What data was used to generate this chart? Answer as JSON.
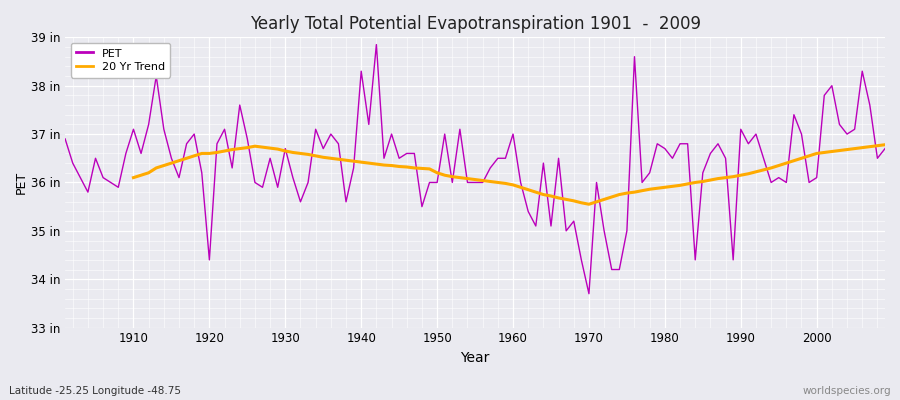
{
  "title": "Yearly Total Potential Evapotranspiration 1901  -  2009",
  "xlabel": "Year",
  "ylabel": "PET",
  "subtitle_left": "Latitude -25.25 Longitude -48.75",
  "subtitle_right": "worldspecies.org",
  "ylim": [
    33,
    39
  ],
  "xlim": [
    1901,
    2009
  ],
  "yticks": [
    33,
    34,
    35,
    36,
    37,
    38,
    39
  ],
  "ytick_labels": [
    "33 in",
    "34 in",
    "35 in",
    "36 in",
    "37 in",
    "38 in",
    "39 in"
  ],
  "xticks": [
    1910,
    1920,
    1930,
    1940,
    1950,
    1960,
    1970,
    1980,
    1990,
    2000
  ],
  "pet_color": "#bb00bb",
  "trend_color": "#ffaa00",
  "bg_color": "#eaeaf0",
  "plot_bg_color": "#eaeaf0",
  "grid_color": "#ffffff",
  "years": [
    1901,
    1902,
    1903,
    1904,
    1905,
    1906,
    1907,
    1908,
    1909,
    1910,
    1911,
    1912,
    1913,
    1914,
    1915,
    1916,
    1917,
    1918,
    1919,
    1920,
    1921,
    1922,
    1923,
    1924,
    1925,
    1926,
    1927,
    1928,
    1929,
    1930,
    1931,
    1932,
    1933,
    1934,
    1935,
    1936,
    1937,
    1938,
    1939,
    1940,
    1941,
    1942,
    1943,
    1944,
    1945,
    1946,
    1947,
    1948,
    1949,
    1950,
    1951,
    1952,
    1953,
    1954,
    1955,
    1956,
    1957,
    1958,
    1959,
    1960,
    1961,
    1962,
    1963,
    1964,
    1965,
    1966,
    1967,
    1968,
    1969,
    1970,
    1971,
    1972,
    1973,
    1974,
    1975,
    1976,
    1977,
    1978,
    1979,
    1980,
    1981,
    1982,
    1983,
    1984,
    1985,
    1986,
    1987,
    1988,
    1989,
    1990,
    1991,
    1992,
    1993,
    1994,
    1995,
    1996,
    1997,
    1998,
    1999,
    2000,
    2001,
    2002,
    2003,
    2004,
    2005,
    2006,
    2007,
    2008,
    2009
  ],
  "pet_values": [
    36.9,
    36.4,
    36.1,
    35.8,
    36.5,
    36.1,
    36.0,
    35.9,
    36.6,
    37.1,
    36.6,
    37.2,
    38.2,
    37.1,
    36.5,
    36.1,
    36.8,
    37.0,
    36.2,
    34.4,
    36.8,
    37.1,
    36.3,
    37.6,
    36.9,
    36.0,
    35.9,
    36.5,
    35.9,
    36.7,
    36.1,
    35.6,
    36.0,
    37.1,
    36.7,
    37.0,
    36.8,
    35.6,
    36.3,
    38.3,
    37.2,
    38.85,
    36.5,
    37.0,
    36.5,
    36.6,
    36.6,
    35.5,
    36.0,
    36.0,
    37.0,
    36.0,
    37.1,
    36.0,
    36.0,
    36.0,
    36.3,
    36.5,
    36.5,
    37.0,
    36.0,
    35.4,
    35.1,
    36.4,
    35.1,
    36.5,
    35.0,
    35.2,
    34.4,
    33.7,
    36.0,
    35.0,
    34.2,
    34.2,
    35.0,
    38.6,
    36.0,
    36.2,
    36.8,
    36.7,
    36.5,
    36.8,
    36.8,
    34.4,
    36.2,
    36.6,
    36.8,
    36.5,
    34.4,
    37.1,
    36.8,
    37.0,
    36.5,
    36.0,
    36.1,
    36.0,
    37.4,
    37.0,
    36.0,
    36.1,
    37.8,
    38.0,
    37.2,
    37.0,
    37.1,
    38.3,
    37.6,
    36.5,
    36.7
  ],
  "trend_years": [
    1910,
    1911,
    1912,
    1913,
    1914,
    1915,
    1916,
    1917,
    1918,
    1919,
    1920,
    1921,
    1922,
    1923,
    1924,
    1925,
    1926,
    1927,
    1928,
    1929,
    1930,
    1931,
    1932,
    1933,
    1934,
    1935,
    1936,
    1937,
    1938,
    1939,
    1940,
    1941,
    1942,
    1943,
    1944,
    1945,
    1946,
    1947,
    1948,
    1949,
    1950,
    1951,
    1952,
    1953,
    1954,
    1955,
    1956,
    1957,
    1958,
    1959,
    1960,
    1961,
    1962,
    1963,
    1964,
    1965,
    1966,
    1967,
    1968,
    1969,
    1970,
    1971,
    1972,
    1973,
    1974,
    1975,
    1976,
    1977,
    1978,
    1979,
    1980,
    1981,
    1982,
    1983,
    1984,
    1985,
    1986,
    1987,
    1988,
    1989,
    1990,
    1991,
    1992,
    1993,
    1994,
    1995,
    1996,
    1997,
    1998,
    1999,
    2000,
    2001,
    2002,
    2003,
    2004,
    2005,
    2006,
    2007,
    2008,
    2009
  ],
  "trend_values": [
    36.1,
    36.15,
    36.2,
    36.3,
    36.35,
    36.4,
    36.45,
    36.5,
    36.55,
    36.6,
    36.6,
    36.62,
    36.65,
    36.68,
    36.7,
    36.72,
    36.75,
    36.73,
    36.71,
    36.69,
    36.65,
    36.62,
    36.6,
    36.58,
    36.55,
    36.52,
    36.5,
    36.48,
    36.46,
    36.44,
    36.42,
    36.4,
    36.38,
    36.36,
    36.35,
    36.33,
    36.32,
    36.3,
    36.29,
    36.28,
    36.2,
    36.15,
    36.12,
    36.1,
    36.08,
    36.06,
    36.04,
    36.02,
    36.0,
    35.98,
    35.95,
    35.9,
    35.85,
    35.8,
    35.75,
    35.72,
    35.68,
    35.65,
    35.62,
    35.58,
    35.55,
    35.6,
    35.65,
    35.7,
    35.75,
    35.78,
    35.8,
    35.83,
    35.86,
    35.88,
    35.9,
    35.92,
    35.94,
    35.97,
    36.0,
    36.02,
    36.05,
    36.08,
    36.1,
    36.12,
    36.15,
    36.18,
    36.22,
    36.26,
    36.3,
    36.35,
    36.4,
    36.45,
    36.5,
    36.55,
    36.6,
    36.62,
    36.64,
    36.66,
    36.68,
    36.7,
    36.72,
    36.74,
    36.76,
    36.78
  ]
}
